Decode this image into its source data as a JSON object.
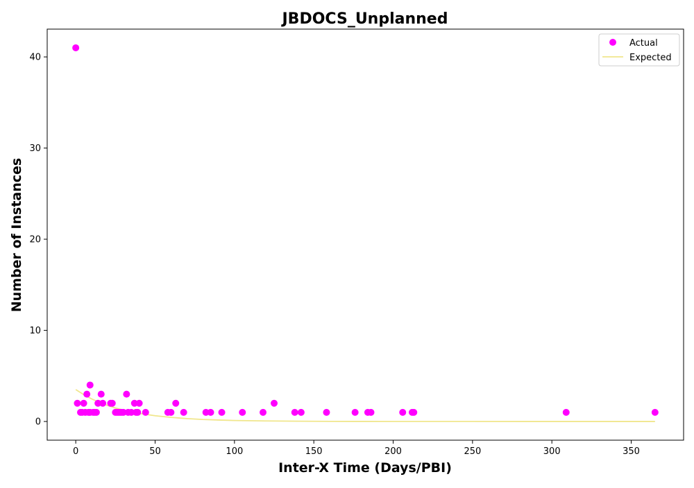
{
  "chart_data": {
    "type": "scatter",
    "title": "JBDOCS_Unplanned",
    "xlabel": "Inter-X Time (Days/PBI)",
    "ylabel": "Number of Instances",
    "xlim": [
      -18,
      383
    ],
    "ylim": [
      -2.05,
      43.05
    ],
    "xticks": [
      0,
      50,
      100,
      150,
      200,
      250,
      300,
      350
    ],
    "yticks": [
      0,
      10,
      20,
      30,
      40
    ],
    "grid": false,
    "legend_position": "top-right",
    "series": [
      {
        "name": "Actual",
        "kind": "scatter",
        "color": "#ff00ff",
        "points": [
          [
            0,
            41
          ],
          [
            1,
            2
          ],
          [
            3,
            1
          ],
          [
            4,
            1
          ],
          [
            5,
            2
          ],
          [
            6,
            1
          ],
          [
            7,
            3
          ],
          [
            8,
            1
          ],
          [
            9,
            4
          ],
          [
            9,
            1
          ],
          [
            11,
            1
          ],
          [
            12,
            1
          ],
          [
            13,
            1
          ],
          [
            14,
            2
          ],
          [
            16,
            3
          ],
          [
            17,
            2
          ],
          [
            22,
            2
          ],
          [
            23,
            2
          ],
          [
            25,
            1
          ],
          [
            26,
            1
          ],
          [
            27,
            1
          ],
          [
            28,
            1
          ],
          [
            29,
            1
          ],
          [
            30,
            1
          ],
          [
            32,
            3
          ],
          [
            33,
            1
          ],
          [
            35,
            1
          ],
          [
            37,
            2
          ],
          [
            38,
            1
          ],
          [
            39,
            1
          ],
          [
            40,
            2
          ],
          [
            44,
            1
          ],
          [
            58,
            1
          ],
          [
            60,
            1
          ],
          [
            63,
            2
          ],
          [
            68,
            1
          ],
          [
            82,
            1
          ],
          [
            85,
            1
          ],
          [
            92,
            1
          ],
          [
            105,
            1
          ],
          [
            118,
            1
          ],
          [
            125,
            2
          ],
          [
            138,
            1
          ],
          [
            142,
            1
          ],
          [
            158,
            1
          ],
          [
            176,
            1
          ],
          [
            184,
            1
          ],
          [
            186,
            1
          ],
          [
            206,
            1
          ],
          [
            212,
            1
          ],
          [
            213,
            1
          ],
          [
            309,
            1
          ],
          [
            365,
            1
          ]
        ]
      },
      {
        "name": "Expected",
        "kind": "line",
        "color": "#f0e68c",
        "points": [
          [
            0,
            3.5
          ],
          [
            5,
            2.95
          ],
          [
            10,
            2.48
          ],
          [
            15,
            2.09
          ],
          [
            20,
            1.76
          ],
          [
            25,
            1.48
          ],
          [
            30,
            1.25
          ],
          [
            35,
            1.05
          ],
          [
            40,
            0.89
          ],
          [
            50,
            0.63
          ],
          [
            60,
            0.45
          ],
          [
            70,
            0.32
          ],
          [
            80,
            0.22
          ],
          [
            90,
            0.16
          ],
          [
            100,
            0.11
          ],
          [
            120,
            0.06
          ],
          [
            140,
            0.03
          ],
          [
            160,
            0.015
          ],
          [
            180,
            0.008
          ],
          [
            200,
            0.004
          ],
          [
            250,
            0.001
          ],
          [
            300,
            0.0
          ],
          [
            365,
            0.0
          ]
        ]
      }
    ]
  }
}
